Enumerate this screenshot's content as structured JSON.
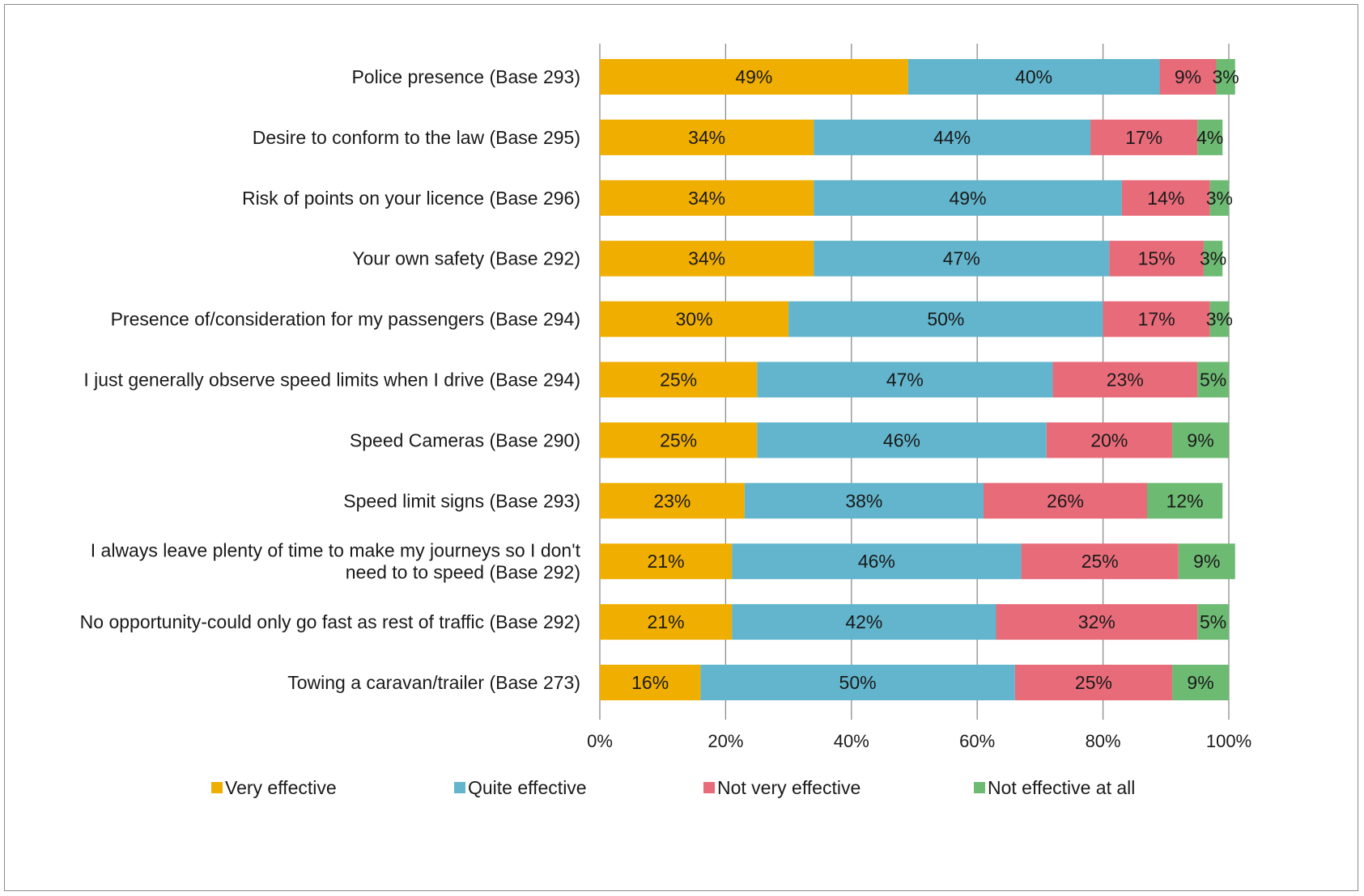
{
  "chart_data": {
    "type": "bar",
    "orientation": "horizontal",
    "stacked": true,
    "categories": [
      [
        "Police presence (Base 293)"
      ],
      [
        "Desire to conform to the law  (Base 295)"
      ],
      [
        "Risk of points on your licence (Base 296)"
      ],
      [
        "Your own safety (Base 292)"
      ],
      [
        "Presence of/consideration for my passengers (Base 294)"
      ],
      [
        "I just generally observe speed limits when I drive (Base 294)"
      ],
      [
        "Speed Cameras  (Base 290)"
      ],
      [
        "Speed limit signs (Base 293)"
      ],
      [
        "I always leave plenty of time to make my journeys so I don't",
        "need to to speed (Base 292)"
      ],
      [
        "No opportunity-could only go fast as rest of traffic (Base 292)"
      ],
      [
        "Towing a caravan/trailer  (Base 273)"
      ]
    ],
    "series": [
      {
        "name": "Very effective",
        "color": "#F0AE00",
        "values": [
          49,
          34,
          34,
          34,
          30,
          25,
          25,
          23,
          21,
          21,
          16
        ]
      },
      {
        "name": "Quite effective",
        "color": "#62B5CC",
        "values": [
          40,
          44,
          49,
          47,
          50,
          47,
          46,
          38,
          46,
          42,
          50
        ]
      },
      {
        "name": "Not very effective",
        "color": "#E86B7A",
        "values": [
          9,
          17,
          14,
          15,
          17,
          23,
          20,
          26,
          25,
          32,
          25
        ]
      },
      {
        "name": "Not effective at all",
        "color": "#6DBA73",
        "values": [
          3,
          4,
          3,
          3,
          3,
          5,
          9,
          12,
          9,
          5,
          9
        ]
      }
    ],
    "xlim": [
      0,
      100
    ],
    "xticks": [
      "0%",
      "20%",
      "40%",
      "60%",
      "80%",
      "100%"
    ],
    "value_suffix": "%",
    "grid": "vertical",
    "legend_position": "bottom"
  }
}
